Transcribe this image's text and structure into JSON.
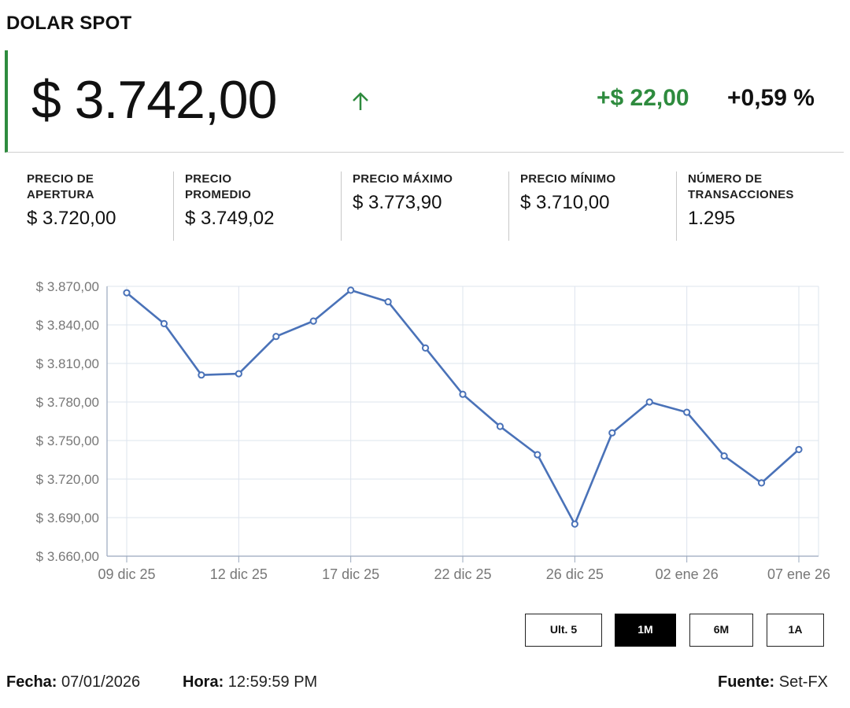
{
  "header": {
    "title": "DOLAR SPOT"
  },
  "price": {
    "value": "$ 3.742,00",
    "change_abs": "+$ 22,00",
    "change_pct": "+0,59 %",
    "trend_icon": "arrow-up-icon"
  },
  "stats": [
    {
      "label": "PRECIO DE\nAPERTURA",
      "value": "$ 3.720,00"
    },
    {
      "label": "PRECIO\nPROMEDIO",
      "value": "$ 3.749,02"
    },
    {
      "label": "PRECIO MÁXIMO",
      "value": "$ 3.773,90"
    },
    {
      "label": "PRECIO MÍNIMO",
      "value": "$ 3.710,00"
    },
    {
      "label": "NÚMERO DE\nTRANSACCIONES",
      "value": "1.295"
    }
  ],
  "chart_data": {
    "type": "line",
    "title": "",
    "xlabel": "",
    "ylabel": "",
    "ylim": [
      3660,
      3870
    ],
    "yticks": [
      3660,
      3690,
      3720,
      3750,
      3780,
      3810,
      3840,
      3870
    ],
    "ytick_labels": [
      "$ 3.660,00",
      "$ 3.690,00",
      "$ 3.720,00",
      "$ 3.750,00",
      "$ 3.780,00",
      "$ 3.810,00",
      "$ 3.840,00",
      "$ 3.870,00"
    ],
    "xtick_labels": [
      "09 dic 25",
      "12 dic 25",
      "17 dic 25",
      "22 dic 25",
      "26 dic 25",
      "02 ene 26",
      "07 ene 26"
    ],
    "x": [
      "09 dic 25",
      "10 dic 25",
      "11 dic 25",
      "12 dic 25",
      "15 dic 25",
      "16 dic 25",
      "17 dic 25",
      "18 dic 25",
      "19 dic 25",
      "22 dic 25",
      "23 dic 25",
      "24 dic 25",
      "26 dic 25",
      "29 dic 25",
      "30 dic 25",
      "02 ene 26",
      "05 ene 26",
      "06 ene 26",
      "07 ene 26"
    ],
    "series": [
      {
        "values": [
          3865,
          3841,
          3801,
          3802,
          3831,
          3843,
          3867,
          3858,
          3822,
          3786,
          3761,
          3739,
          3685,
          3756,
          3780,
          3772,
          3738,
          3717,
          3743
        ]
      }
    ],
    "grid": true,
    "legend": "none",
    "line_color": "#4a72b8"
  },
  "range_buttons": [
    {
      "label": "Ult. 5",
      "active": false
    },
    {
      "label": "1M",
      "active": true
    },
    {
      "label": "6M",
      "active": false
    },
    {
      "label": "1A",
      "active": false
    }
  ],
  "footer": {
    "fecha_label": "Fecha:",
    "fecha": "07/01/2026",
    "hora_label": "Hora:",
    "hora": "12:59:59 PM",
    "fuente_label": "Fuente:",
    "fuente": "Set-FX"
  }
}
